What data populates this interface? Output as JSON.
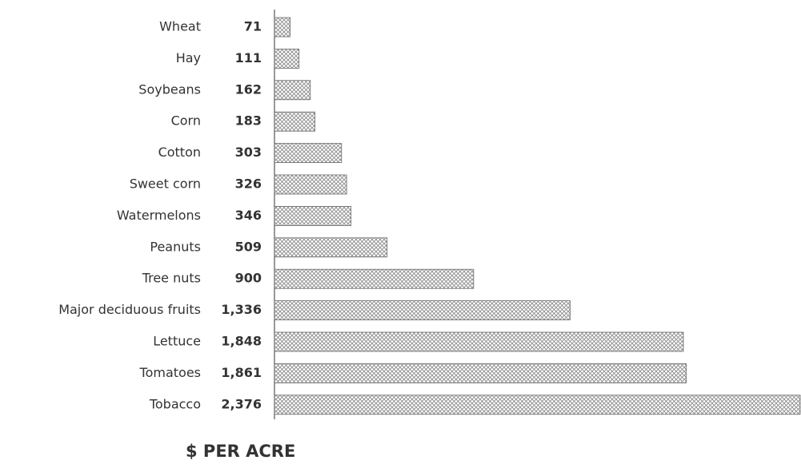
{
  "chart_data": {
    "type": "bar",
    "orientation": "horizontal",
    "categories": [
      "Wheat",
      "Hay",
      "Soybeans",
      "Corn",
      "Cotton",
      "Sweet corn",
      "Watermelons",
      "Peanuts",
      "Tree nuts",
      "Major deciduous fruits",
      "Lettuce",
      "Tomatoes",
      "Tobacco"
    ],
    "values": [
      71,
      111,
      162,
      183,
      303,
      326,
      346,
      509,
      900,
      1336,
      1848,
      1861,
      2376
    ],
    "value_labels": [
      "71",
      "111",
      "162",
      "183",
      "303",
      "326",
      "346",
      "509",
      "900",
      "1,336",
      "1,848",
      "1,861",
      "2,376"
    ],
    "xlabel": "$ PER ACRE",
    "xlim": [
      0,
      2376
    ],
    "color": "#8a8a8a"
  }
}
